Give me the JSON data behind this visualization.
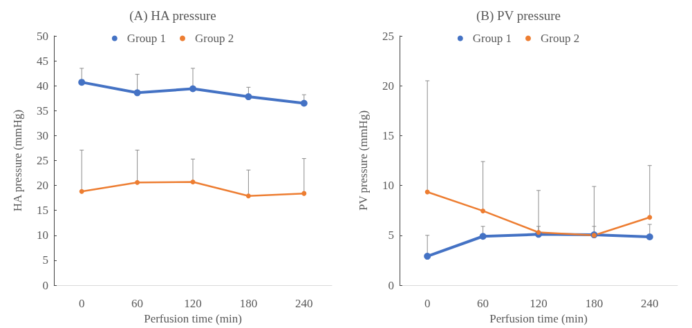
{
  "chart_data": [
    {
      "type": "line",
      "title": "(A) HA pressure",
      "xlabel": "Perfusion time (min)",
      "ylabel": "HA pressure (mmHg)",
      "categories": [
        "0",
        "60",
        "120",
        "180",
        "240"
      ],
      "ylim": [
        0,
        50
      ],
      "yticks": [
        0,
        5,
        10,
        15,
        20,
        25,
        30,
        35,
        40,
        45,
        50
      ],
      "grid": false,
      "legend": "top",
      "marker": "circle",
      "series": [
        {
          "name": "Group 1",
          "color": "#4472c4",
          "values": [
            40.7,
            38.6,
            39.4,
            37.8,
            36.5
          ],
          "errors": [
            [
              40.7,
              43.5
            ],
            [
              38.6,
              42.3
            ],
            [
              39.4,
              43.5
            ],
            [
              37.8,
              39.7
            ],
            [
              36.5,
              38.2
            ]
          ]
        },
        {
          "name": "Group 2",
          "color": "#ed7d31",
          "values": [
            18.8,
            20.6,
            20.7,
            17.9,
            18.4
          ],
          "errors": [
            [
              18.8,
              27.1
            ],
            [
              20.6,
              27.1
            ],
            [
              20.7,
              25.3
            ],
            [
              17.9,
              23.1
            ],
            [
              18.4,
              25.4
            ]
          ]
        }
      ]
    },
    {
      "type": "line",
      "title": "(B) PV pressure",
      "xlabel": "Perfusion time (min)",
      "ylabel": "PV pressure (mmHg)",
      "categories": [
        "0",
        "60",
        "120",
        "180",
        "240"
      ],
      "ylim": [
        0,
        25
      ],
      "yticks": [
        0,
        5,
        10,
        15,
        20,
        25
      ],
      "grid": false,
      "legend": "top",
      "marker": "circle",
      "series": [
        {
          "name": "Group 1",
          "color": "#4472c4",
          "values": [
            2.9,
            4.9,
            5.1,
            5.05,
            4.85
          ],
          "errors": [
            [
              2.9,
              5.0
            ],
            [
              4.9,
              5.9
            ],
            [
              5.1,
              5.9
            ],
            [
              5.05,
              5.9
            ],
            [
              4.85,
              6.1
            ]
          ]
        },
        {
          "name": "Group 2",
          "color": "#ed7d31",
          "values": [
            9.35,
            7.45,
            5.3,
            5.0,
            6.8
          ],
          "errors": [
            [
              9.35,
              20.5
            ],
            [
              7.45,
              12.4
            ],
            [
              5.3,
              9.5
            ],
            [
              5.0,
              9.9
            ],
            [
              6.8,
              12.0
            ]
          ]
        }
      ]
    }
  ]
}
